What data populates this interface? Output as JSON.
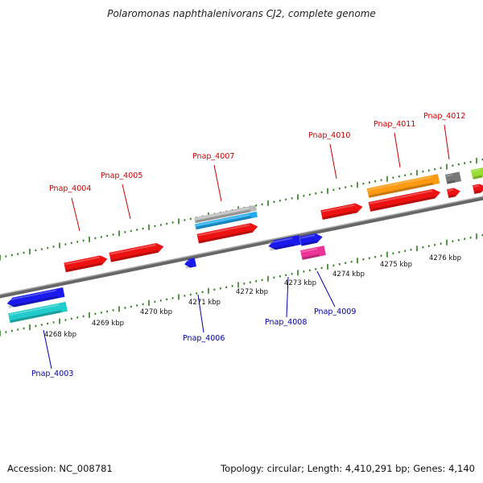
{
  "title": "Polaromonas naphthalenivorans CJ2, complete genome",
  "accession": "Accession: NC_008781",
  "topology": "Topology: circular; Length: 4,410,291 bp; Genes: 4,140",
  "colors": {
    "backbone": "#888888",
    "tick": "#2e7d1e",
    "label_plus": "#cc0000",
    "label_minus": "#0000aa",
    "red": "#ee1111",
    "blue": "#1a1aee",
    "cyan": "#22cccc",
    "light_blue": "#22aaee",
    "orange": "#ff9a11",
    "magenta": "#ee3399",
    "gray": "#777777",
    "silver": "#bbbbbb",
    "green": "#99dd33"
  },
  "ticks": [
    {
      "label": "4268 kbp"
    },
    {
      "label": "4269 kbp"
    },
    {
      "label": "4270 kbp"
    },
    {
      "label": "4271 kbp"
    },
    {
      "label": "4272 kbp"
    },
    {
      "label": "4273 kbp"
    },
    {
      "label": "4274 kbp"
    },
    {
      "label": "4275 kbp"
    },
    {
      "label": "4276 kbp"
    }
  ],
  "genes": [
    {
      "name": "Pnap_4003",
      "strand": "minus"
    },
    {
      "name": "Pnap_4004",
      "strand": "plus"
    },
    {
      "name": "Pnap_4005",
      "strand": "plus"
    },
    {
      "name": "Pnap_4006",
      "strand": "minus"
    },
    {
      "name": "Pnap_4007",
      "strand": "plus"
    },
    {
      "name": "Pnap_4008",
      "strand": "minus"
    },
    {
      "name": "Pnap_4009",
      "strand": "minus"
    },
    {
      "name": "Pnap_4010",
      "strand": "plus"
    },
    {
      "name": "Pnap_4011",
      "strand": "plus"
    },
    {
      "name": "Pnap_4012",
      "strand": "plus"
    }
  ]
}
